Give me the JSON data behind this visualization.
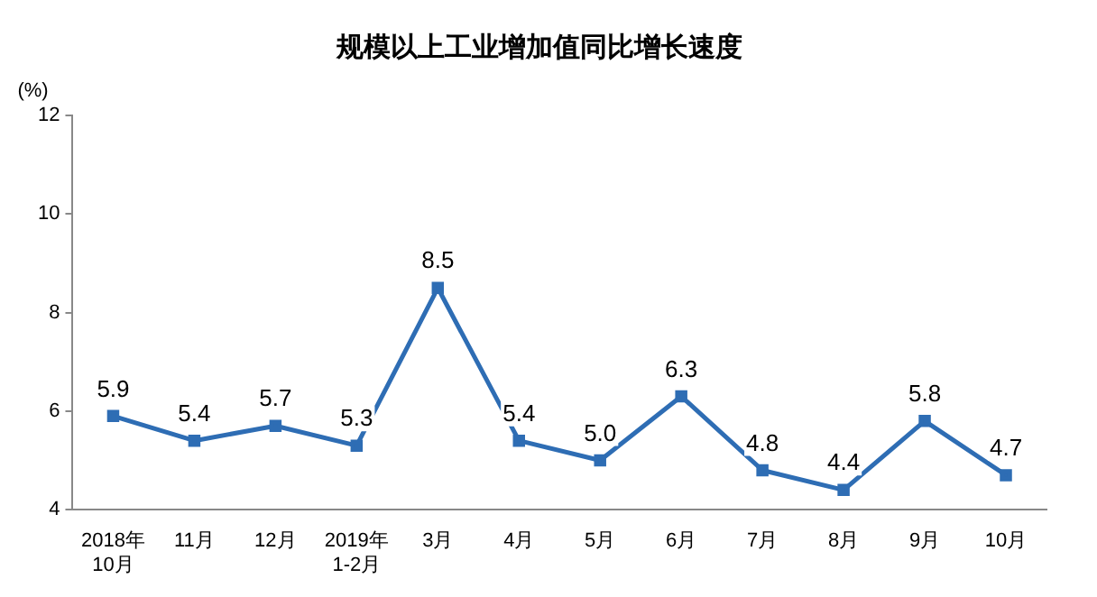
{
  "chart_data": {
    "type": "line",
    "title": "规模以上工业增加值同比增长速度",
    "ylabel": "(%)",
    "categories": [
      "2018年\n10月",
      "11月",
      "12月",
      "2019年\n1-2月",
      "3月",
      "4月",
      "5月",
      "6月",
      "7月",
      "8月",
      "9月",
      "10月"
    ],
    "series": [
      {
        "color": "#2e6db4",
        "values": [
          5.9,
          5.4,
          5.7,
          5.3,
          8.5,
          5.4,
          5.0,
          6.3,
          4.8,
          4.4,
          5.8,
          4.7
        ],
        "value_labels": [
          "5.9",
          "5.4",
          "5.7",
          "5.3",
          "8.5",
          "5.4",
          "5.0",
          "6.3",
          "4.8",
          "4.4",
          "5.8",
          "4.7"
        ]
      }
    ],
    "ylim": [
      4,
      12
    ],
    "yticks": [
      4,
      6,
      8,
      10,
      12
    ],
    "grid": false,
    "legend": false,
    "marker": "square",
    "line_style": "solid"
  }
}
